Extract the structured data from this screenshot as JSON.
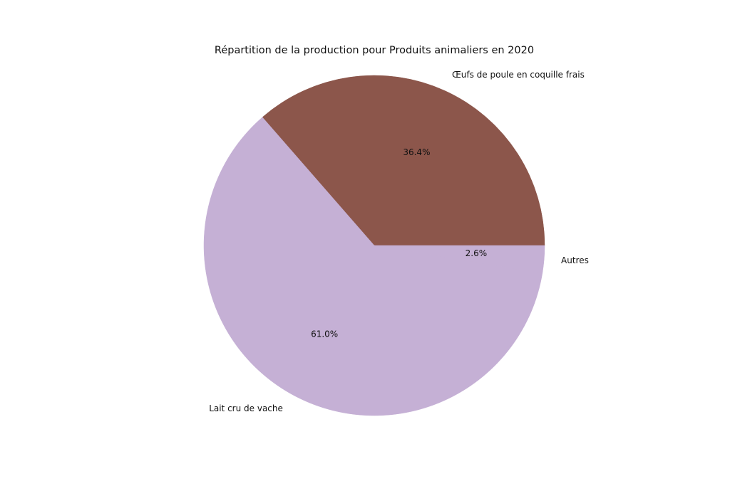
{
  "chart_data": {
    "type": "pie",
    "title": "Répartition de la production pour Produits animaliers en 2020",
    "slices": [
      {
        "label": "Œufs de poule en coquille frais",
        "value": 36.4,
        "pct_label": "36.4%",
        "color": "#8c564b"
      },
      {
        "label": "Lait cru de vache",
        "value": 61.0,
        "pct_label": "61.0%",
        "color": "#c5b0d5"
      },
      {
        "label": "Autres",
        "value": 2.6,
        "pct_label": "2.6%",
        "color": "#c5b0d5"
      }
    ],
    "start_angle_deg": 0,
    "direction": "counterclockwise",
    "legend": "none"
  }
}
